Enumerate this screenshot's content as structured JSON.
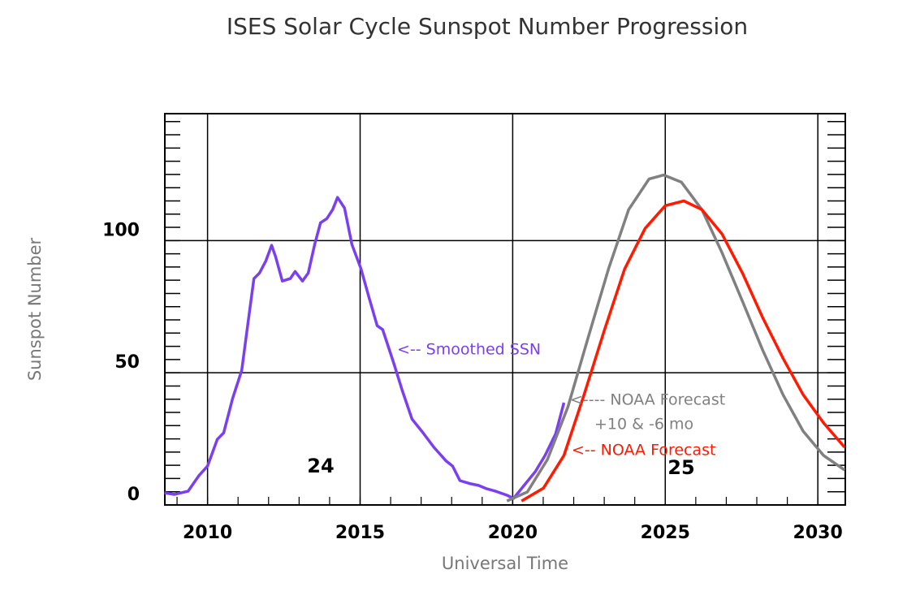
{
  "chart_data": {
    "type": "line",
    "title": "ISES Solar Cycle Sunspot Number Progression",
    "xlabel": "Universal Time",
    "ylabel": "Sunspot Number",
    "xlim": [
      2008.6,
      2030.9
    ],
    "ylim": [
      0,
      148
    ],
    "xticks": [
      2010,
      2015,
      2020,
      2025,
      2030
    ],
    "yticks": [
      0,
      50,
      100
    ],
    "xminor_step": 1,
    "yminor_step": 5,
    "grid": true,
    "series": [
      {
        "name": "<-- Smoothed SSN",
        "color": "#7b3ff2",
        "x": [
          2008.59,
          2008.91,
          2009.36,
          2009.71,
          2010.0,
          2010.32,
          2010.53,
          2010.82,
          2011.12,
          2011.33,
          2011.52,
          2011.7,
          2011.91,
          2012.1,
          2012.23,
          2012.45,
          2012.71,
          2012.87,
          2013.11,
          2013.3,
          2013.51,
          2013.7,
          2013.91,
          2014.1,
          2014.26,
          2014.49,
          2014.73,
          2015.03,
          2015.29,
          2015.56,
          2015.74,
          2016.09,
          2016.38,
          2016.7,
          2017.02,
          2017.42,
          2017.82,
          2018.03,
          2018.27,
          2018.62,
          2018.88,
          2019.15,
          2019.44,
          2019.81,
          2020.03,
          2020.48,
          2020.74,
          2021.06,
          2021.41,
          2021.68
        ],
        "values": [
          4.6,
          4.0,
          5.2,
          11.0,
          14.7,
          24.8,
          27.3,
          40.2,
          50.9,
          69.3,
          85.6,
          87.7,
          92.3,
          98.2,
          93.9,
          84.7,
          85.6,
          88.3,
          84.7,
          87.7,
          98.5,
          106.7,
          108.3,
          111.7,
          116.3,
          112.3,
          98.5,
          89.3,
          78.5,
          67.8,
          66.3,
          54.0,
          43.3,
          32.5,
          27.9,
          21.8,
          16.6,
          14.7,
          9.2,
          8.0,
          7.4,
          6.1,
          5.2,
          3.7,
          2.5,
          8.9,
          12.6,
          18.7,
          27.0,
          38.7
        ]
      },
      {
        "name": "<---- NOAA Forecast",
        "color": "#808080",
        "x": [
          2019.81,
          2020.48,
          2021.14,
          2021.81,
          2022.47,
          2023.14,
          2023.8,
          2024.47,
          2024.95,
          2025.53,
          2026.2,
          2026.86,
          2027.53,
          2028.19,
          2028.86,
          2029.52,
          2030.19,
          2030.88
        ],
        "values": [
          1.5,
          4.9,
          17.2,
          37.1,
          63.2,
          89.3,
          111.7,
          123.3,
          124.8,
          122.1,
          111.7,
          95.4,
          77.0,
          58.6,
          41.7,
          27.9,
          18.7,
          13.2
        ]
      },
      {
        "name": "<-- NOAA Forecast",
        "color": "#ff1a00",
        "x": [
          2020.29,
          2021.01,
          2021.68,
          2022.34,
          2023.01,
          2023.67,
          2024.34,
          2025.0,
          2025.61,
          2026.2,
          2026.86,
          2027.53,
          2028.19,
          2028.86,
          2029.52,
          2030.19,
          2030.88
        ],
        "values": [
          1.5,
          6.4,
          18.7,
          41.7,
          66.3,
          89.3,
          104.6,
          113.2,
          115.0,
          111.7,
          102.5,
          87.7,
          70.9,
          55.5,
          41.7,
          31.0,
          21.8
        ]
      }
    ],
    "annotations": [
      "+10 & -6 mo",
      "24",
      "25"
    ]
  }
}
